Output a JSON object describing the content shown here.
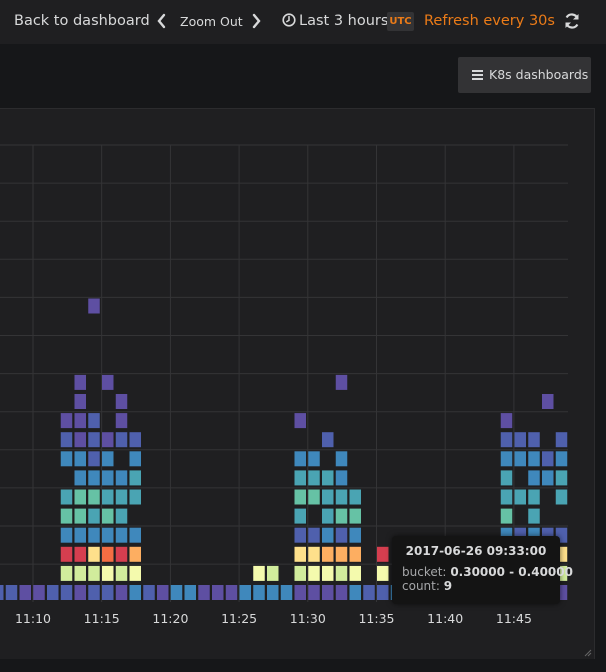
{
  "navbar": {
    "back_label": "Back to dashboard",
    "zoom_out_label": "Zoom Out",
    "time_range_label": "Last 3 hours",
    "timezone_badge": "UTC",
    "refresh_label": "Refresh every 30s"
  },
  "toolbar": {
    "k8s_dashboards_label": "K8s dashboards"
  },
  "colors": {
    "accent": "#eb7b18",
    "panel_background": "#1f1f21",
    "page_background": "#161719"
  },
  "icons": {
    "prev": "chevron-left-icon",
    "next": "chevron-right-icon",
    "clock": "clock-icon",
    "refresh": "refresh-icon",
    "menu": "hamburger-icon"
  },
  "chart_data": {
    "type": "heatmap",
    "x_tick_labels": [
      "11:10",
      "11:15",
      "11:20",
      "11:25",
      "11:30",
      "11:35",
      "11:40",
      "11:45"
    ],
    "tooltip": {
      "time": "2017-06-26 09:33:00",
      "bucket_key": "bucket:",
      "bucket_value": "0.30000 - 0.40000",
      "count_key": "count:",
      "count_value": "9"
    }
  }
}
